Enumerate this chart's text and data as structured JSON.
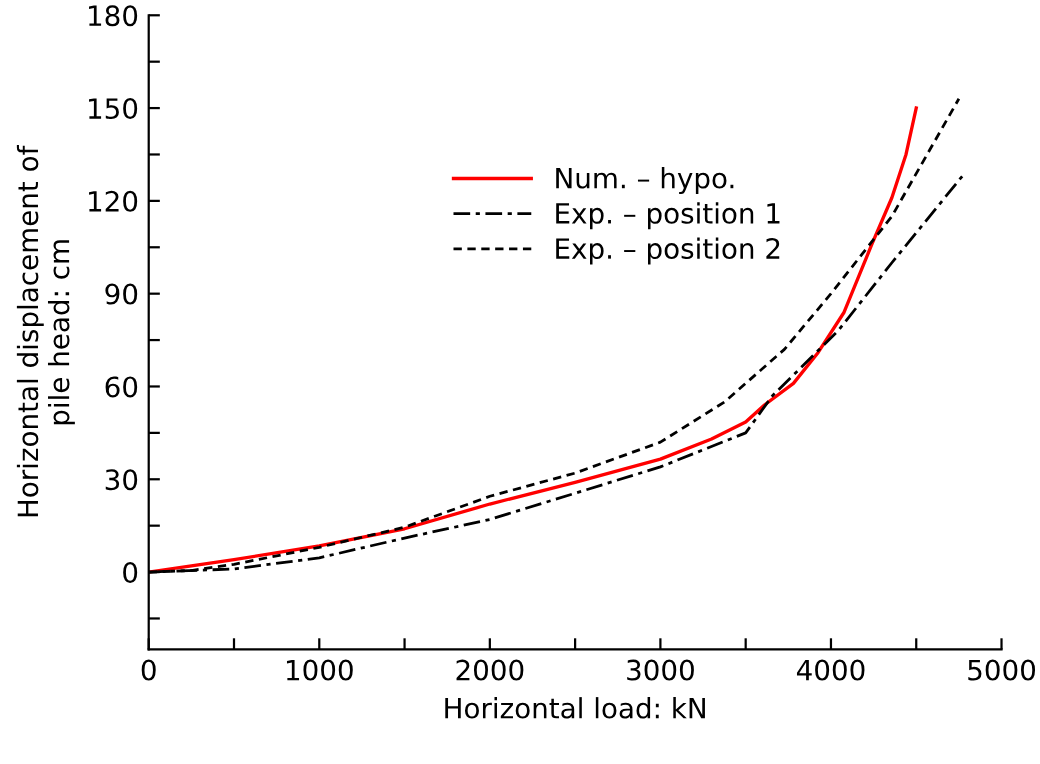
{
  "chart_data": {
    "type": "line",
    "xlabel": "Horizontal load: kN",
    "ylabel": "Horizontal displacement of\npile head: cm",
    "xlim": [
      0,
      5000
    ],
    "ylim": [
      -25,
      180
    ],
    "xticks": [
      0,
      {
        "value": 500,
        "label": null
      },
      1000,
      {
        "value": 1500,
        "label": null
      },
      2000,
      {
        "value": 2500,
        "label": null
      },
      3000,
      {
        "value": 3500,
        "label": null
      },
      4000,
      {
        "value": 4500,
        "label": null
      },
      5000
    ],
    "yticks": [
      {
        "value": -15,
        "label": null
      },
      0,
      {
        "value": 15,
        "label": null
      },
      30,
      {
        "value": 45,
        "label": null
      },
      60,
      {
        "value": 75,
        "label": null
      },
      90,
      {
        "value": 105,
        "label": null
      },
      120,
      {
        "value": 135,
        "label": null
      },
      150,
      {
        "value": 165,
        "label": null
      },
      180
    ],
    "legend": "top",
    "grid": false,
    "series": [
      {
        "name": "Num. – hypo.",
        "color": "#ff0000",
        "line_style": "solid",
        "x": [
          0,
          250,
          500,
          1000,
          1500,
          2000,
          2500,
          3000,
          3300,
          3500,
          3610,
          3780,
          3925,
          4077,
          4240,
          4357,
          4440,
          4500
        ],
        "values": [
          0,
          2,
          4,
          8.5,
          14,
          22,
          29,
          36.5,
          43,
          48.5,
          54,
          61,
          71,
          84,
          106,
          121,
          135,
          150
        ]
      },
      {
        "name": "Exp. – position 1",
        "color": "#000000",
        "line_style": "dashdot",
        "x": [
          0,
          500,
          1000,
          1500,
          2000,
          2500,
          3000,
          3500,
          3657,
          4042,
          4357,
          4770
        ],
        "values": [
          0,
          1,
          4.6,
          11,
          17,
          25.5,
          34,
          45,
          57,
          78,
          100,
          128
        ]
      },
      {
        "name": "Exp. – position 2",
        "color": "#000000",
        "line_style": "dashed",
        "x": [
          0,
          250,
          500,
          1000,
          1500,
          2000,
          2500,
          3000,
          3376,
          3727,
          4000,
          4357,
          4750
        ],
        "values": [
          0,
          0.5,
          2.5,
          8,
          14.5,
          24.5,
          32,
          42,
          55,
          72,
          90,
          115,
          153
        ]
      }
    ]
  }
}
